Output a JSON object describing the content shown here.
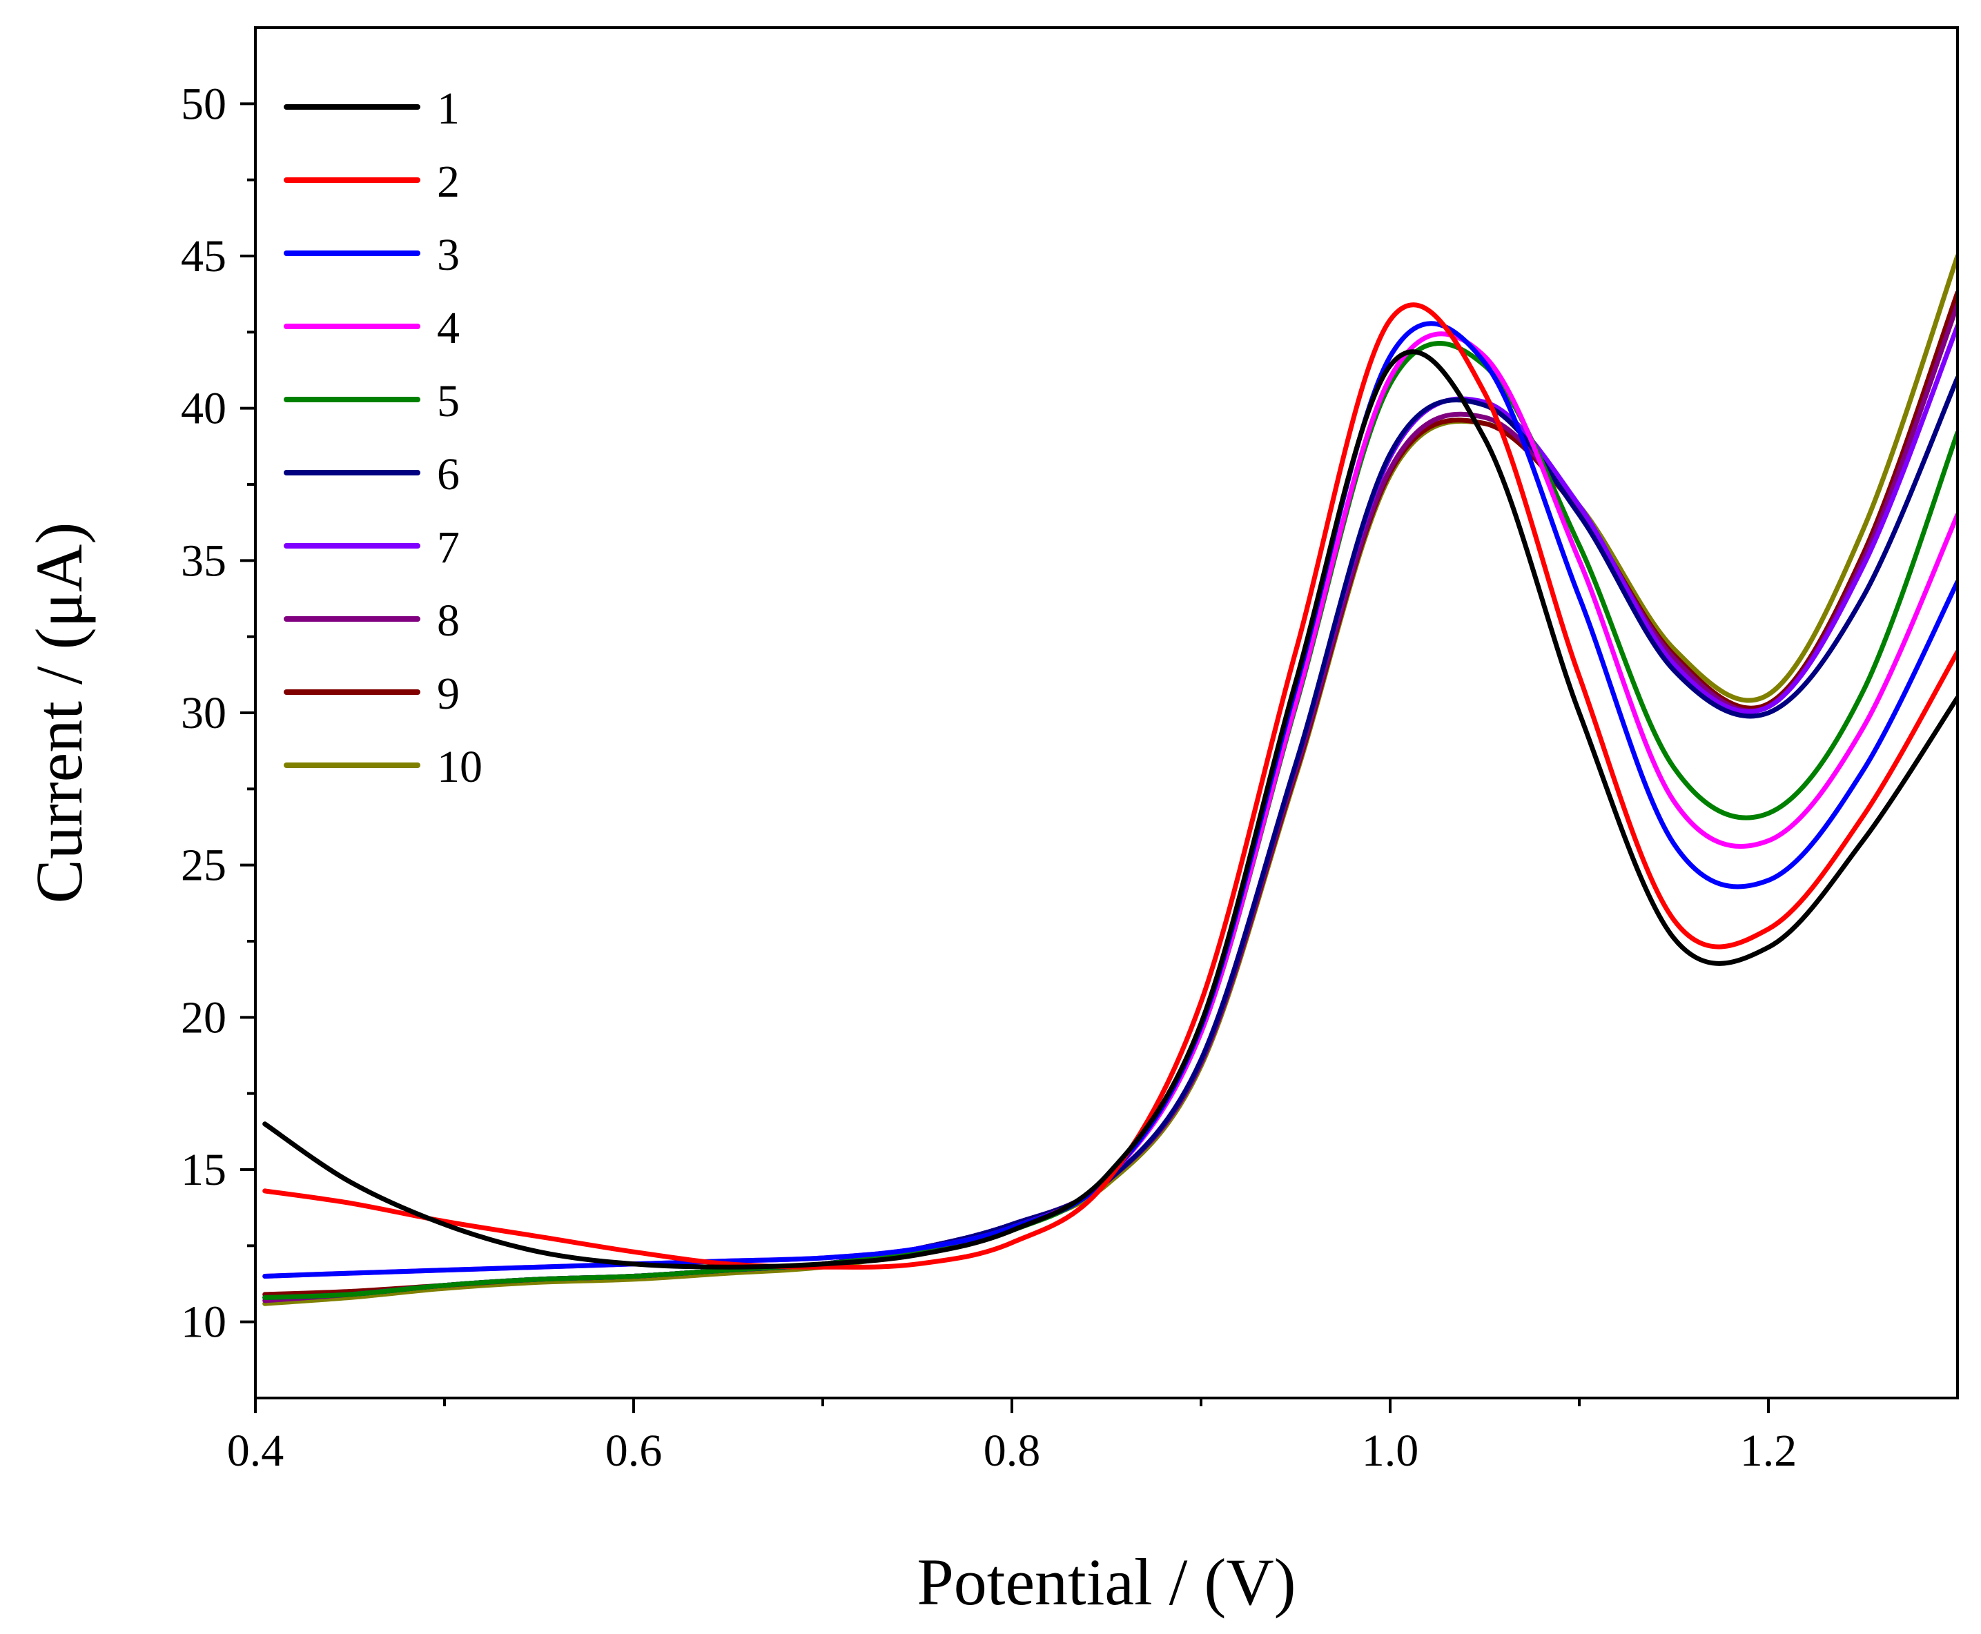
{
  "chart_data": {
    "type": "line",
    "title": "",
    "xlabel": "Potential / (V)",
    "ylabel": "Current / (μA)",
    "xlim": [
      0.4,
      1.3
    ],
    "ylim": [
      7.5,
      52.5
    ],
    "x_ticks": [
      0.4,
      0.6,
      0.8,
      1.0,
      1.2
    ],
    "x_tick_labels": [
      "0.4",
      "0.6",
      "0.8",
      "1.0",
      "1.2"
    ],
    "x_minor_ticks": [
      0.5,
      0.7,
      0.9,
      1.1
    ],
    "y_ticks": [
      10,
      15,
      20,
      25,
      30,
      35,
      40,
      45,
      50
    ],
    "y_tick_labels": [
      "10",
      "15",
      "20",
      "25",
      "30",
      "35",
      "40",
      "45",
      "50"
    ],
    "grid": false,
    "legend_position": "top-left",
    "x": [
      0.405,
      0.45,
      0.5,
      0.55,
      0.6,
      0.65,
      0.7,
      0.75,
      0.8,
      0.85,
      0.9,
      0.95,
      1.0,
      1.05,
      1.1,
      1.15,
      1.2,
      1.25,
      1.3
    ],
    "series": [
      {
        "name": "1",
        "color": "#000000",
        "values": [
          16.5,
          14.6,
          13.2,
          12.3,
          11.9,
          11.8,
          11.9,
          12.2,
          13.0,
          14.8,
          19.8,
          31.0,
          41.4,
          39.0,
          30.0,
          22.6,
          22.3,
          25.8,
          30.5
        ]
      },
      {
        "name": "2",
        "color": "#ff0000",
        "values": [
          14.3,
          13.9,
          13.3,
          12.8,
          12.3,
          11.9,
          11.8,
          11.9,
          12.6,
          14.6,
          20.5,
          32.0,
          42.9,
          40.5,
          31.2,
          23.2,
          22.9,
          26.6,
          32.0
        ]
      },
      {
        "name": "3",
        "color": "#0000ff",
        "values": [
          11.5,
          11.6,
          11.7,
          11.8,
          11.9,
          12.0,
          12.1,
          12.4,
          13.1,
          14.7,
          19.7,
          30.8,
          41.7,
          41.5,
          33.8,
          25.7,
          24.5,
          28.1,
          34.3
        ]
      },
      {
        "name": "4",
        "color": "#ff00ff",
        "values": [
          11.5,
          11.6,
          11.7,
          11.8,
          11.9,
          12.0,
          12.1,
          12.4,
          13.1,
          14.7,
          19.5,
          30.3,
          41.0,
          41.7,
          35.0,
          27.1,
          25.8,
          29.5,
          36.5
        ]
      },
      {
        "name": "5",
        "color": "#008000",
        "values": [
          10.8,
          10.9,
          11.2,
          11.4,
          11.5,
          11.7,
          11.9,
          12.3,
          13.0,
          14.7,
          19.5,
          30.2,
          40.8,
          41.4,
          35.5,
          28.2,
          26.7,
          30.7,
          39.2
        ]
      },
      {
        "name": "6",
        "color": "#000080",
        "values": [
          10.8,
          10.9,
          11.2,
          11.4,
          11.5,
          11.7,
          11.9,
          12.4,
          13.2,
          14.6,
          18.6,
          28.3,
          38.5,
          40.1,
          36.5,
          31.4,
          30.0,
          33.8,
          41.0
        ]
      },
      {
        "name": "7",
        "color": "#8000ff",
        "values": [
          10.8,
          10.9,
          11.2,
          11.4,
          11.5,
          11.7,
          11.9,
          12.4,
          13.2,
          14.6,
          18.6,
          28.3,
          38.4,
          40.2,
          36.8,
          31.6,
          30.2,
          34.8,
          42.7
        ]
      },
      {
        "name": "8",
        "color": "#800080",
        "values": [
          10.7,
          10.9,
          11.2,
          11.4,
          11.5,
          11.7,
          11.9,
          12.4,
          13.2,
          14.6,
          18.5,
          28.1,
          38.0,
          39.7,
          36.6,
          31.8,
          30.2,
          35.0,
          43.4
        ]
      },
      {
        "name": "9",
        "color": "#800000",
        "values": [
          10.9,
          11.0,
          11.2,
          11.4,
          11.5,
          11.7,
          11.9,
          12.4,
          13.2,
          14.6,
          18.5,
          28.0,
          37.9,
          39.5,
          36.6,
          31.9,
          30.3,
          35.2,
          43.8
        ]
      },
      {
        "name": "10",
        "color": "#808000",
        "values": [
          10.6,
          10.8,
          11.1,
          11.3,
          11.4,
          11.6,
          11.8,
          12.3,
          13.1,
          14.5,
          18.4,
          27.9,
          37.8,
          39.5,
          36.8,
          32.1,
          30.6,
          36.0,
          45.0
        ]
      }
    ]
  }
}
